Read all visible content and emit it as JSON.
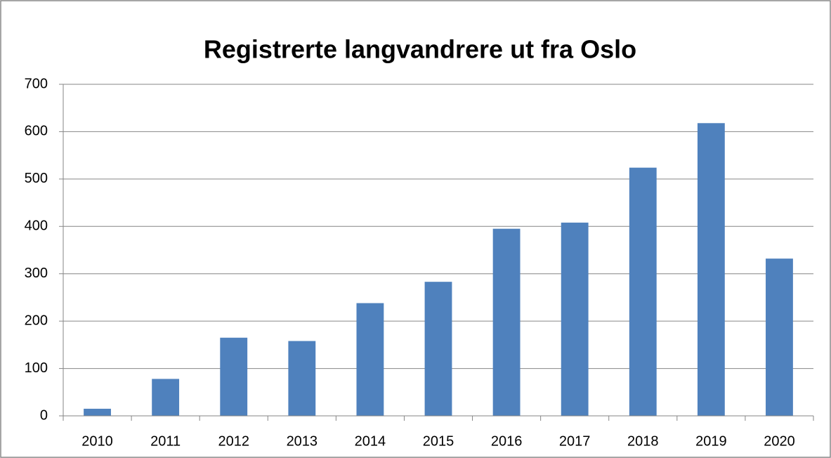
{
  "chart_data": {
    "type": "bar",
    "title": "Registrerte langvandrere ut fra Oslo",
    "categories": [
      "2010",
      "2011",
      "2012",
      "2013",
      "2014",
      "2015",
      "2016",
      "2017",
      "2018",
      "2019",
      "2020"
    ],
    "values": [
      15,
      78,
      165,
      158,
      238,
      283,
      395,
      408,
      524,
      618,
      332
    ],
    "color": "#4f81bd",
    "ylim": [
      0,
      700
    ],
    "yticks": [
      0,
      100,
      200,
      300,
      400,
      500,
      600,
      700
    ],
    "grid": true
  }
}
